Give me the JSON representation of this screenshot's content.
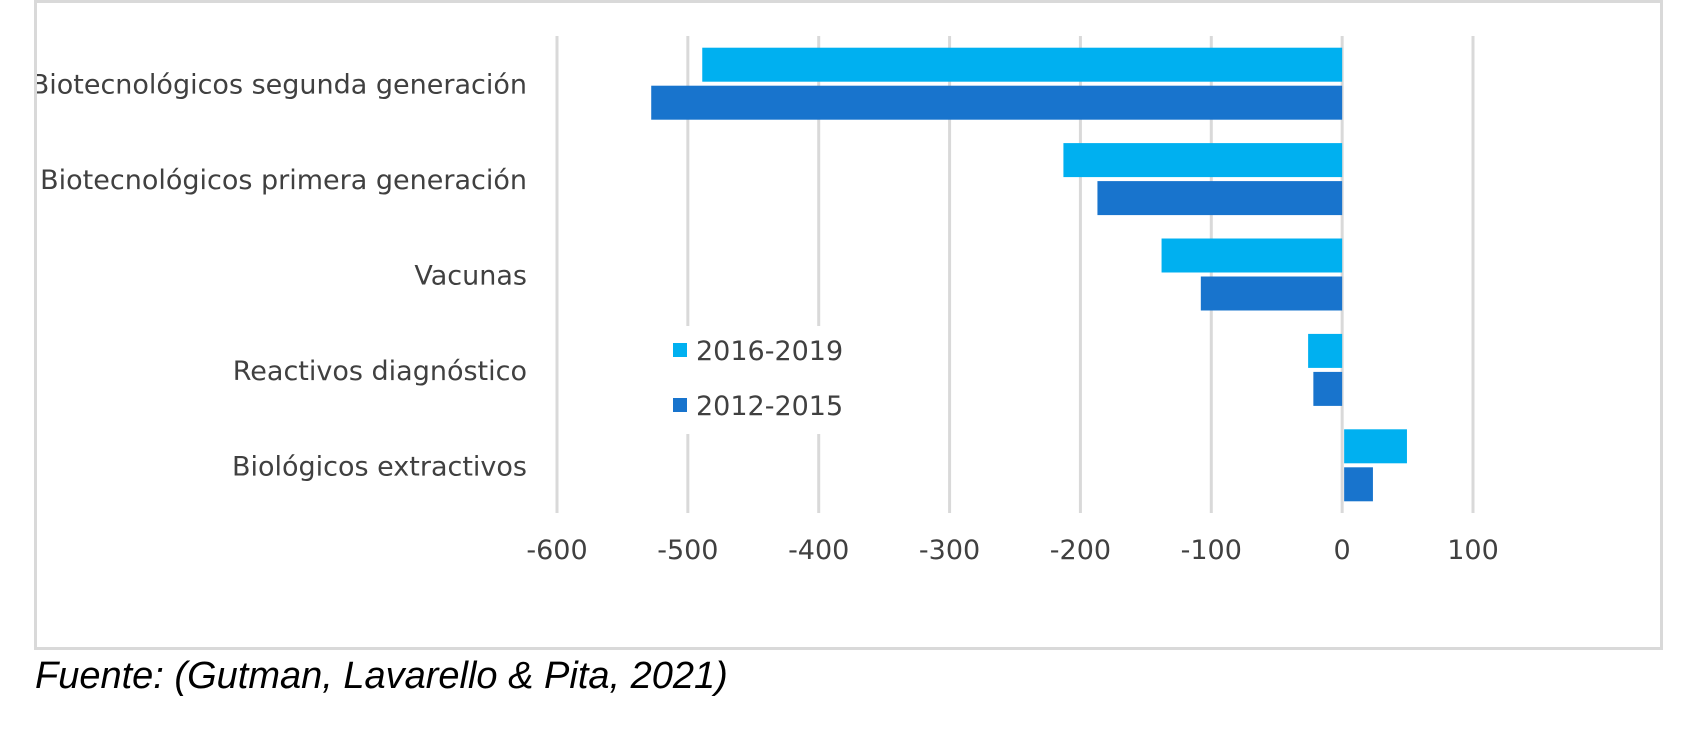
{
  "chart_data": {
    "type": "bar",
    "orientation": "horizontal",
    "categories": [
      "Biotecnológicos segunda generación",
      "Biotecnológicos primera generación",
      "Vacunas",
      "Reactivos diagnóstico",
      "Biológicos extractivos"
    ],
    "series": [
      {
        "name": "2016-2019",
        "color": "#00b0f0",
        "values": [
          -489,
          -213,
          -138,
          -26,
          48
        ]
      },
      {
        "name": "2012-2015",
        "color": "#1874cd",
        "values": [
          -528,
          -187,
          -108,
          -22,
          22
        ]
      }
    ],
    "xlim": [
      -600,
      100
    ],
    "xticks": [
      -600,
      -500,
      -400,
      -300,
      -200,
      -100,
      0,
      100
    ],
    "xtick_labels": [
      "-600",
      "-500",
      "-400",
      "-300",
      "-200",
      "-100",
      "0",
      "100"
    ],
    "grid": true,
    "legend_position": "center-left inside plot"
  },
  "source": "Fuente: (Gutman, Lavarello & Pita, 2021)"
}
